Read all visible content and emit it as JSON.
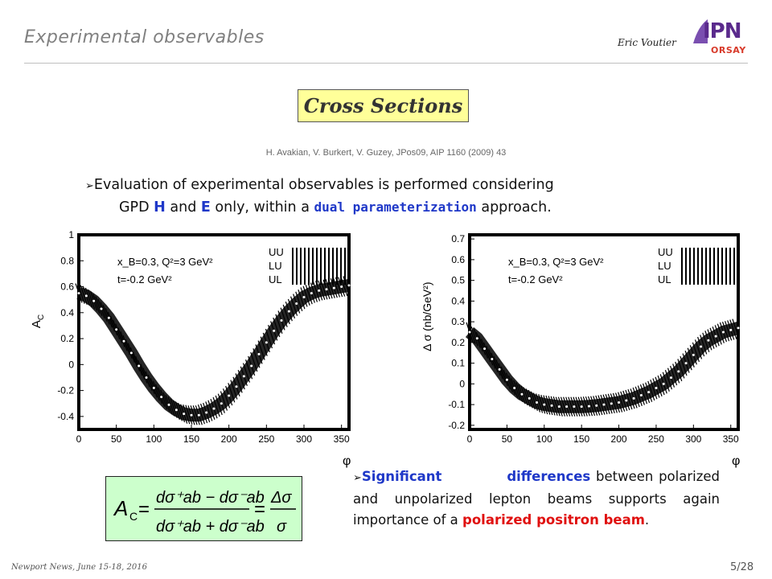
{
  "header": {
    "title": "Experimental observables",
    "author": "Eric Voutier",
    "logo_main": "IPN",
    "logo_sub": "ORSAY"
  },
  "section_title": "Cross Sections",
  "reference": "H. Avakian, V. Burkert, V. Guzey,  JPos09, AIP 1160 (2009) 43",
  "intro": {
    "line1": "Evaluation of experimental observables is performed considering",
    "line2_a": "GPD ",
    "line2_h": "H",
    "line2_b": " and ",
    "line2_e": "E",
    "line2_c": " only, within a ",
    "line2_dual": "dual parameterization",
    "line2_d": " approach."
  },
  "conclusion": {
    "a": "Significant",
    "b": "differences",
    "c": " between polarized and unpolarized lepton beams supports again importance of a ",
    "d": "polarized positron beam",
    "e": "."
  },
  "footer": {
    "left": "Newport News, June 15-18, 2016",
    "page": "5",
    "total": "/28"
  },
  "chart_data": [
    {
      "type": "line",
      "ylabel": "A",
      "ylabel_sub": "C",
      "xlabel": "φ",
      "xlim": [
        0,
        360
      ],
      "ylim": [
        -0.5,
        1.0
      ],
      "xticks": [
        0,
        50,
        100,
        150,
        200,
        250,
        300,
        350
      ],
      "yticks": [
        -0.4,
        -0.2,
        0,
        0.2,
        0.4,
        0.6,
        0.8,
        1
      ],
      "annotations": [
        "x_B=0.3, Q²=3 GeV²",
        "t=-0.2 GeV²"
      ],
      "legend": [
        "UU",
        "LU",
        "UL"
      ],
      "legend_position": "top-right",
      "series": [
        {
          "x": [
            0,
            10,
            20,
            30,
            40,
            50,
            60,
            70,
            80,
            90,
            100,
            110,
            120,
            130,
            140,
            150,
            160,
            170,
            180,
            190,
            200,
            210,
            220,
            230,
            240,
            250,
            260,
            270,
            280,
            290,
            300,
            310,
            320,
            330,
            340,
            350,
            360
          ],
          "y": [
            0.55,
            0.53,
            0.49,
            0.43,
            0.36,
            0.27,
            0.18,
            0.09,
            -0.01,
            -0.1,
            -0.18,
            -0.25,
            -0.31,
            -0.35,
            -0.38,
            -0.39,
            -0.39,
            -0.37,
            -0.34,
            -0.3,
            -0.24,
            -0.17,
            -0.09,
            -0.01,
            0.08,
            0.17,
            0.26,
            0.34,
            0.41,
            0.47,
            0.52,
            0.55,
            0.57,
            0.58,
            0.59,
            0.6,
            0.61
          ]
        }
      ]
    },
    {
      "type": "line",
      "ylabel": "Δ σ (nb/GeV²)",
      "xlabel": "φ",
      "xlim": [
        0,
        360
      ],
      "ylim": [
        -0.22,
        0.72
      ],
      "xticks": [
        0,
        50,
        100,
        150,
        200,
        250,
        300,
        350
      ],
      "yticks": [
        -0.2,
        -0.1,
        0,
        0.1,
        0.2,
        0.3,
        0.4,
        0.5,
        0.6,
        0.7
      ],
      "annotations": [
        "x_B=0.3, Q²=3 GeV²",
        "t=-0.2 GeV²"
      ],
      "legend": [
        "UU",
        "LU",
        "UL"
      ],
      "legend_position": "top-right",
      "series": [
        {
          "x": [
            0,
            10,
            20,
            30,
            40,
            50,
            60,
            70,
            80,
            90,
            100,
            110,
            120,
            130,
            140,
            150,
            160,
            170,
            180,
            190,
            200,
            210,
            220,
            230,
            240,
            250,
            260,
            270,
            280,
            290,
            300,
            310,
            320,
            330,
            340,
            350,
            360
          ],
          "y": [
            0.25,
            0.22,
            0.17,
            0.12,
            0.07,
            0.02,
            -0.02,
            -0.05,
            -0.07,
            -0.09,
            -0.1,
            -0.105,
            -0.11,
            -0.11,
            -0.11,
            -0.11,
            -0.108,
            -0.105,
            -0.1,
            -0.095,
            -0.09,
            -0.08,
            -0.07,
            -0.055,
            -0.04,
            -0.02,
            0.0,
            0.03,
            0.06,
            0.1,
            0.14,
            0.18,
            0.21,
            0.23,
            0.25,
            0.26,
            0.27
          ]
        }
      ]
    }
  ],
  "formula": {
    "lhs": "A",
    "lhs_sub": "C",
    "eq": "=",
    "num": "dσ⁺ab − dσ⁻ab",
    "den": "dσ⁺ab + dσ⁻ab",
    "rhs_num": "Δσ",
    "rhs_den": "σ"
  }
}
